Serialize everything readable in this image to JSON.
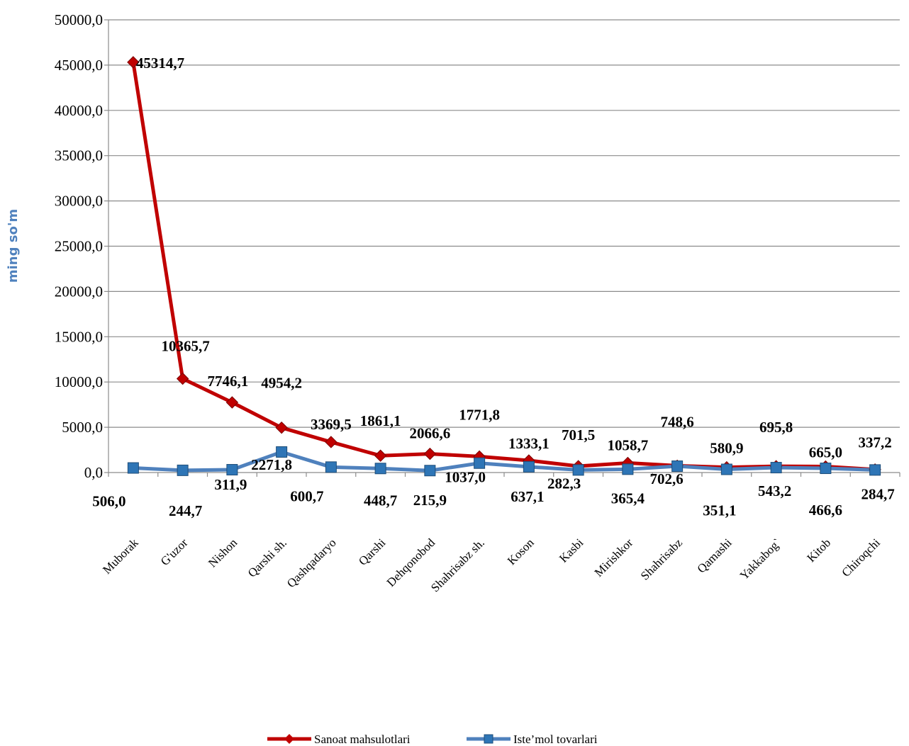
{
  "chart_data": {
    "type": "line",
    "title": "",
    "xlabel": "",
    "ylabel": "ming so'm",
    "ylim": [
      0,
      50000
    ],
    "ytick_step": 5000,
    "grid": true,
    "legend_position": "bottom",
    "categories": [
      "Muborak",
      "G'uzor",
      "Nishon",
      "Qarshi sh.",
      "Qashqadaryo",
      "Qarshi",
      "Dehqonobod",
      "Shahrisabz sh.",
      "Koson",
      "Kasbi",
      "Mirishkor",
      "Shahrisabz",
      "Qamashi",
      "Yakkabog`",
      "Kitob",
      "Chiroqchi"
    ],
    "series": [
      {
        "name": "Sanoat mahsulotlari",
        "color": "#c00000",
        "marker": "diamond",
        "values": [
          45314.7,
          10365.7,
          7746.1,
          4954.2,
          3369.5,
          1861.1,
          2066.6,
          1771.8,
          1333.1,
          701.5,
          1058.7,
          748.6,
          580.9,
          695.8,
          665.0,
          337.2
        ],
        "labels": [
          "45314,7",
          "10365,7",
          "7746,1",
          "4954,2",
          "3369,5",
          "1861,1",
          "2066,6",
          "1771,8",
          "1333,1",
          "701,5",
          "1058,7",
          "748,6",
          "580,9",
          "695,8",
          "665,0",
          "337,2"
        ]
      },
      {
        "name": "Iste’mol tovarlari",
        "color": "#4f81bd",
        "marker": "square",
        "marker_color": "#2e75b6",
        "values": [
          506.0,
          244.7,
          311.9,
          2271.8,
          600.7,
          448.7,
          215.9,
          1037.0,
          637.1,
          282.3,
          365.4,
          702.6,
          351.1,
          543.2,
          466.6,
          284.7
        ],
        "labels": [
          "506,0",
          "244,7",
          "311,9",
          "2271,8",
          "600,7",
          "448,7",
          "215,9",
          "1037,0",
          "637,1",
          "282,3",
          "365,4",
          "702,6",
          "351,1",
          "543,2",
          "466,6",
          "284,7"
        ]
      }
    ],
    "ytick_labels": [
      "0,0",
      "5000,0",
      "10000,0",
      "15000,0",
      "20000,0",
      "25000,0",
      "30000,0",
      "35000,0",
      "40000,0",
      "45000,0",
      "50000,0"
    ]
  }
}
